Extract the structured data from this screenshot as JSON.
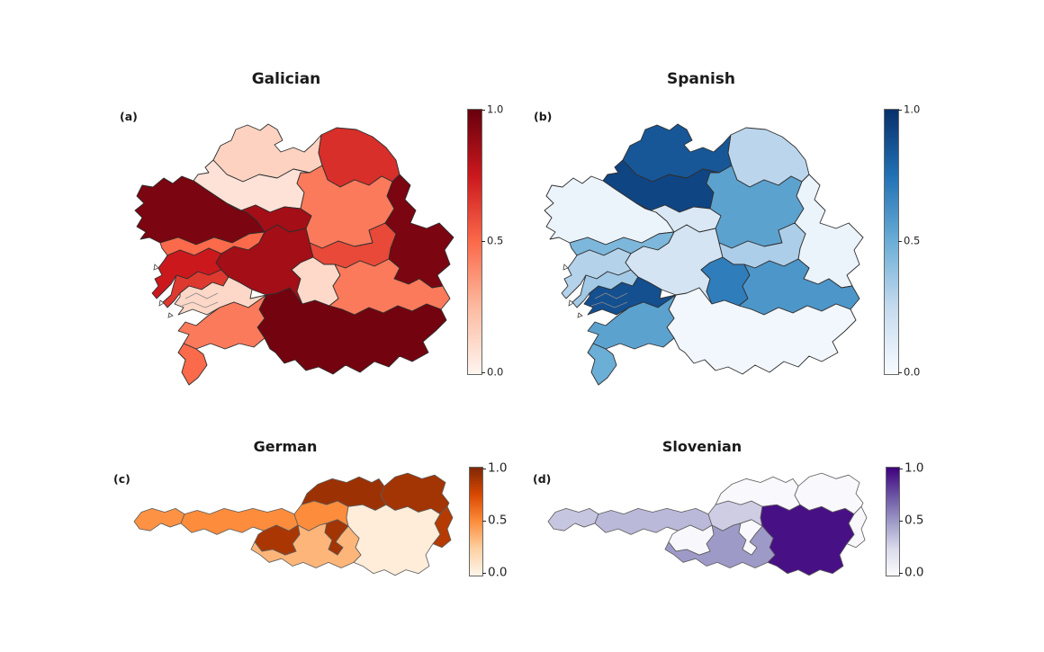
{
  "figure": {
    "background": "#ffffff",
    "panels": [
      {
        "label": "(a)",
        "title": "Galician",
        "colormap": "Reds",
        "ticks": [
          "1.0",
          "0.5",
          "0.0"
        ]
      },
      {
        "label": "(b)",
        "title": "Spanish",
        "colormap": "Blues",
        "ticks": [
          "1.0",
          "0.5",
          "0.0"
        ]
      },
      {
        "label": "(c)",
        "title": "German",
        "colormap": "Oranges",
        "ticks": [
          "1.0",
          "0.5",
          "0.0"
        ]
      },
      {
        "label": "(d)",
        "title": "Slovenian",
        "colormap": "Purples",
        "ticks": [
          "1.0",
          "0.5",
          "0.0"
        ]
      }
    ]
  },
  "colormaps": {
    "Reds": [
      [
        0.0,
        "#fff5f0"
      ],
      [
        0.25,
        "#fcbba1"
      ],
      [
        0.5,
        "#fb6a4a"
      ],
      [
        0.75,
        "#cb181d"
      ],
      [
        1.0,
        "#67000d"
      ]
    ],
    "Blues": [
      [
        0.0,
        "#f7fbff"
      ],
      [
        0.25,
        "#c6dbef"
      ],
      [
        0.5,
        "#6baed6"
      ],
      [
        0.75,
        "#2171b5"
      ],
      [
        1.0,
        "#08306b"
      ]
    ],
    "Oranges": [
      [
        0.0,
        "#fff5eb"
      ],
      [
        0.25,
        "#fdd0a2"
      ],
      [
        0.5,
        "#fd8d3c"
      ],
      [
        0.75,
        "#d94801"
      ],
      [
        1.0,
        "#7f2704"
      ]
    ],
    "Purples": [
      [
        0.0,
        "#fcfbfd"
      ],
      [
        0.25,
        "#dadaeb"
      ],
      [
        0.5,
        "#9e9ac8"
      ],
      [
        0.75,
        "#6a51a3"
      ],
      [
        1.0,
        "#3f007d"
      ]
    ]
  },
  "chart_data": [
    {
      "type": "choropleth",
      "panel": "(a)",
      "title": "Galician",
      "geometry": "galicia",
      "colormap": "Reds",
      "value_range": [
        0,
        1
      ],
      "colorbar_ticks": [
        1.0,
        0.5,
        0.0
      ],
      "regions": [
        {
          "id": "r1",
          "area": "north-peninsula",
          "value": 0.15
        },
        {
          "id": "r2",
          "area": "north-central",
          "value": 0.08
        },
        {
          "id": "r3",
          "area": "northeast-coast",
          "value": 0.68
        },
        {
          "id": "r4",
          "area": "central-lugo",
          "value": 0.45
        },
        {
          "id": "r5",
          "area": "east",
          "value": 0.95
        },
        {
          "id": "r6",
          "area": "northwest-coast",
          "value": 0.95
        },
        {
          "id": "r7",
          "area": "center-north",
          "value": 0.85
        },
        {
          "id": "r8",
          "area": "west-band",
          "value": 0.5
        },
        {
          "id": "r9",
          "area": "west-peninsula",
          "value": 0.75
        },
        {
          "id": "r10",
          "area": "center",
          "value": 0.85
        },
        {
          "id": "r11",
          "area": "west-coast-strip",
          "value": 0.65
        },
        {
          "id": "r12",
          "area": "southwest-rias",
          "value": 0.13
        },
        {
          "id": "r13",
          "area": "southwest",
          "value": 0.45
        },
        {
          "id": "r14",
          "area": "southwest-tip",
          "value": 0.5
        },
        {
          "id": "r15",
          "area": "center-south",
          "value": 0.12
        },
        {
          "id": "r16",
          "area": "center-east",
          "value": 0.6
        },
        {
          "id": "r17",
          "area": "southeast-band",
          "value": 0.45
        },
        {
          "id": "r18",
          "area": "south",
          "value": 0.97
        }
      ]
    },
    {
      "type": "choropleth",
      "panel": "(b)",
      "title": "Spanish",
      "geometry": "galicia",
      "colormap": "Blues",
      "value_range": [
        0,
        1
      ],
      "colorbar_ticks": [
        1.0,
        0.5,
        0.0
      ],
      "regions": [
        {
          "id": "r1",
          "area": "north-peninsula",
          "value": 0.85
        },
        {
          "id": "r2",
          "area": "north-central",
          "value": 0.92
        },
        {
          "id": "r3",
          "area": "northeast-coast",
          "value": 0.28
        },
        {
          "id": "r4",
          "area": "central-lugo",
          "value": 0.55
        },
        {
          "id": "r5",
          "area": "east",
          "value": 0.06
        },
        {
          "id": "r6",
          "area": "northwest-coast",
          "value": 0.06
        },
        {
          "id": "r7",
          "area": "center-north",
          "value": 0.15
        },
        {
          "id": "r8",
          "area": "west-band",
          "value": 0.45
        },
        {
          "id": "r9",
          "area": "west-peninsula",
          "value": 0.3
        },
        {
          "id": "r10",
          "area": "center",
          "value": 0.18
        },
        {
          "id": "r11",
          "area": "west-coast-strip",
          "value": 0.35
        },
        {
          "id": "r12",
          "area": "southwest-rias",
          "value": 0.88
        },
        {
          "id": "r13",
          "area": "southwest",
          "value": 0.55
        },
        {
          "id": "r14",
          "area": "southwest-tip",
          "value": 0.5
        },
        {
          "id": "r15",
          "area": "center-south",
          "value": 0.7
        },
        {
          "id": "r16",
          "area": "center-east",
          "value": 0.32
        },
        {
          "id": "r17",
          "area": "southeast-band",
          "value": 0.6
        },
        {
          "id": "r18",
          "area": "south",
          "value": 0.03
        }
      ]
    },
    {
      "type": "choropleth",
      "panel": "(c)",
      "title": "German",
      "geometry": "austria",
      "colormap": "Oranges",
      "value_range": [
        0,
        1
      ],
      "colorbar_ticks": [
        1.0,
        0.5,
        0.0
      ],
      "regions": [
        {
          "id": "vorarlberg",
          "area": "far-west",
          "value": 0.48
        },
        {
          "id": "tirol",
          "area": "west-strip",
          "value": 0.5
        },
        {
          "id": "salzburg",
          "area": "center-north",
          "value": 0.5
        },
        {
          "id": "upper_austria",
          "area": "north-central",
          "value": 0.92
        },
        {
          "id": "lower_austria",
          "area": "northeast",
          "value": 0.9
        },
        {
          "id": "burgenland",
          "area": "east-sliver",
          "value": 0.85
        },
        {
          "id": "styria",
          "area": "southeast",
          "value": 0.06
        },
        {
          "id": "carinthia",
          "area": "south-central",
          "value": 0.35
        },
        {
          "id": "enclave_a",
          "area": "central-enclave",
          "value": 0.88
        },
        {
          "id": "tongue_b",
          "area": "central-tongue",
          "value": 0.9
        }
      ]
    },
    {
      "type": "choropleth",
      "panel": "(d)",
      "title": "Slovenian",
      "geometry": "austria",
      "colormap": "Purples",
      "value_range": [
        0,
        1
      ],
      "colorbar_ticks": [
        1.0,
        0.5,
        0.0
      ],
      "regions": [
        {
          "id": "vorarlberg",
          "area": "far-west",
          "value": 0.33
        },
        {
          "id": "tirol",
          "area": "west-strip",
          "value": 0.38
        },
        {
          "id": "salzburg",
          "area": "center-north",
          "value": 0.3
        },
        {
          "id": "upper_austria",
          "area": "north-central",
          "value": 0.02
        },
        {
          "id": "lower_austria",
          "area": "northeast",
          "value": 0.02
        },
        {
          "id": "burgenland",
          "area": "east-sliver",
          "value": 0.03
        },
        {
          "id": "styria",
          "area": "southeast",
          "value": 0.95
        },
        {
          "id": "carinthia",
          "area": "south-central",
          "value": 0.5
        },
        {
          "id": "enclave_a",
          "area": "central-enclave",
          "value": 0.03
        },
        {
          "id": "tongue_b",
          "area": "central-tongue",
          "value": 0.02
        }
      ]
    }
  ]
}
